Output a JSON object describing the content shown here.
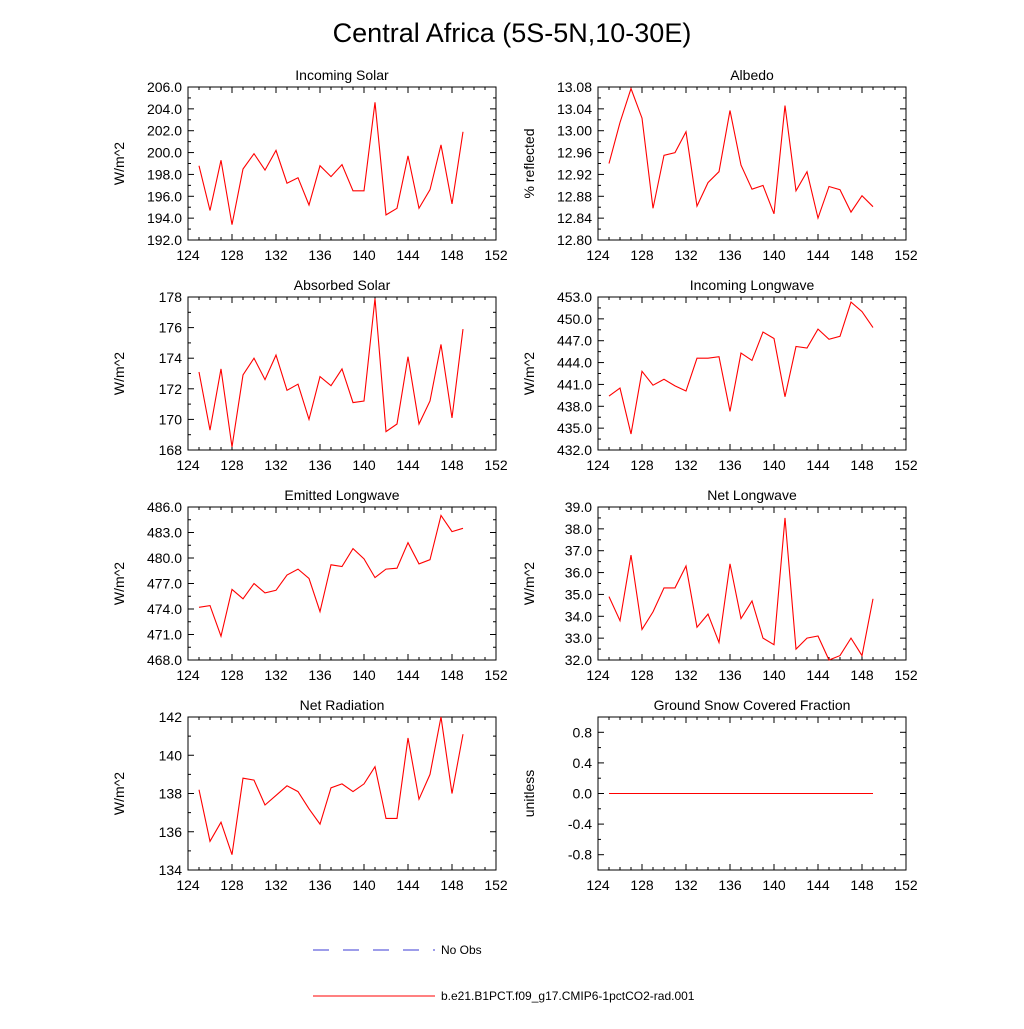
{
  "figure": {
    "title": "Central Africa (5S-5N,10-30E)"
  },
  "legend": {
    "entries": [
      {
        "label": "No Obs",
        "color": "#3b3bd6",
        "dash": true
      },
      {
        "label": "b.e21.B1PCT.f09_g17.CMIP6-1pctCO2-rad.001",
        "color": "#ff0000",
        "dash": false
      }
    ]
  },
  "chart_data": [
    {
      "type": "line",
      "title": "Incoming Solar",
      "ylabel": "W/m^2",
      "xlim": [
        124,
        152
      ],
      "ylim": [
        192,
        206
      ],
      "xticks": [
        "124",
        "128",
        "132",
        "136",
        "140",
        "144",
        "148",
        "152"
      ],
      "yticks": [
        "192.0",
        "194.0",
        "196.0",
        "198.0",
        "200.0",
        "202.0",
        "204.0",
        "206.0"
      ],
      "series": [
        {
          "color": "#ff0000",
          "x": [
            125,
            126,
            127,
            128,
            129,
            130,
            131,
            132,
            133,
            134,
            135,
            136,
            137,
            138,
            139,
            140,
            141,
            142,
            143,
            144,
            145,
            146,
            147,
            148,
            149
          ],
          "y": [
            198.8,
            194.7,
            199.3,
            193.4,
            198.5,
            199.9,
            198.4,
            200.2,
            197.2,
            197.7,
            195.2,
            198.8,
            197.8,
            198.9,
            196.5,
            196.5,
            204.6,
            194.3,
            194.9,
            199.7,
            194.9,
            196.6,
            200.7,
            195.3,
            201.9
          ]
        }
      ]
    },
    {
      "type": "line",
      "title": "Albedo",
      "ylabel": "% reflected",
      "xlim": [
        124,
        152
      ],
      "ylim": [
        12.8,
        13.08
      ],
      "xticks": [
        "124",
        "128",
        "132",
        "136",
        "140",
        "144",
        "148",
        "152"
      ],
      "yticks": [
        "12.80",
        "12.84",
        "12.88",
        "12.92",
        "12.96",
        "13.00",
        "13.04",
        "13.08"
      ],
      "series": [
        {
          "color": "#ff0000",
          "x": [
            125,
            126,
            127,
            128,
            129,
            130,
            131,
            132,
            133,
            134,
            135,
            136,
            137,
            138,
            139,
            140,
            141,
            142,
            143,
            144,
            145,
            146,
            147,
            148,
            149
          ],
          "y": [
            12.94,
            13.015,
            13.077,
            13.023,
            12.858,
            12.955,
            12.96,
            12.998,
            12.862,
            12.905,
            12.925,
            13.037,
            12.937,
            12.893,
            12.9,
            12.848,
            13.046,
            12.89,
            12.925,
            12.84,
            12.898,
            12.892,
            12.851,
            12.881,
            12.861
          ]
        }
      ]
    },
    {
      "type": "line",
      "title": "Absorbed Solar",
      "ylabel": "W/m^2",
      "xlim": [
        124,
        152
      ],
      "ylim": [
        168,
        178
      ],
      "xticks": [
        "124",
        "128",
        "132",
        "136",
        "140",
        "144",
        "148",
        "152"
      ],
      "yticks": [
        "168",
        "170",
        "172",
        "174",
        "176",
        "178"
      ],
      "series": [
        {
          "color": "#ff0000",
          "x": [
            125,
            126,
            127,
            128,
            129,
            130,
            131,
            132,
            133,
            134,
            135,
            136,
            137,
            138,
            139,
            140,
            141,
            142,
            143,
            144,
            145,
            146,
            147,
            148,
            149
          ],
          "y": [
            173.1,
            169.3,
            173.3,
            168.2,
            172.9,
            174.0,
            172.6,
            174.2,
            171.9,
            172.3,
            170.0,
            172.8,
            172.2,
            173.3,
            171.1,
            171.2,
            177.9,
            169.2,
            169.7,
            174.1,
            169.7,
            171.2,
            174.9,
            170.1,
            175.9
          ]
        }
      ]
    },
    {
      "type": "line",
      "title": "Incoming Longwave",
      "ylabel": "W/m^2",
      "xlim": [
        124,
        152
      ],
      "ylim": [
        432,
        453
      ],
      "xticks": [
        "124",
        "128",
        "132",
        "136",
        "140",
        "144",
        "148",
        "152"
      ],
      "yticks": [
        "432.0",
        "435.0",
        "438.0",
        "441.0",
        "444.0",
        "447.0",
        "450.0",
        "453.0"
      ],
      "series": [
        {
          "color": "#ff0000",
          "x": [
            125,
            126,
            127,
            128,
            129,
            130,
            131,
            132,
            133,
            134,
            135,
            136,
            137,
            138,
            139,
            140,
            141,
            142,
            143,
            144,
            145,
            146,
            147,
            148,
            149
          ],
          "y": [
            439.4,
            440.5,
            434.2,
            442.8,
            440.9,
            441.7,
            440.8,
            440.1,
            444.6,
            444.6,
            444.8,
            437.3,
            445.3,
            444.3,
            448.2,
            447.3,
            439.3,
            446.2,
            446.0,
            448.6,
            447.2,
            447.6,
            452.3,
            451.0,
            448.8
          ]
        }
      ]
    },
    {
      "type": "line",
      "title": "Emitted Longwave",
      "ylabel": "W/m^2",
      "xlim": [
        124,
        152
      ],
      "ylim": [
        468,
        486
      ],
      "xticks": [
        "124",
        "128",
        "132",
        "136",
        "140",
        "144",
        "148",
        "152"
      ],
      "yticks": [
        "468.0",
        "471.0",
        "474.0",
        "477.0",
        "480.0",
        "483.0",
        "486.0"
      ],
      "series": [
        {
          "color": "#ff0000",
          "x": [
            125,
            126,
            127,
            128,
            129,
            130,
            131,
            132,
            133,
            134,
            135,
            136,
            137,
            138,
            139,
            140,
            141,
            142,
            143,
            144,
            145,
            146,
            147,
            148,
            149
          ],
          "y": [
            474.2,
            474.4,
            470.8,
            476.3,
            475.2,
            477.0,
            475.9,
            476.2,
            478.0,
            478.7,
            477.6,
            473.7,
            479.2,
            479.0,
            481.1,
            479.9,
            477.7,
            478.7,
            478.8,
            481.8,
            479.3,
            479.8,
            485.0,
            483.1,
            483.5
          ]
        }
      ]
    },
    {
      "type": "line",
      "title": "Net Longwave",
      "ylabel": "W/m^2",
      "xlim": [
        124,
        152
      ],
      "ylim": [
        32,
        39
      ],
      "xticks": [
        "124",
        "128",
        "132",
        "136",
        "140",
        "144",
        "148",
        "152"
      ],
      "yticks": [
        "32.0",
        "33.0",
        "34.0",
        "35.0",
        "36.0",
        "37.0",
        "38.0",
        "39.0"
      ],
      "series": [
        {
          "color": "#ff0000",
          "x": [
            125,
            126,
            127,
            128,
            129,
            130,
            131,
            132,
            133,
            134,
            135,
            136,
            137,
            138,
            139,
            140,
            141,
            142,
            143,
            144,
            145,
            146,
            147,
            148,
            149
          ],
          "y": [
            34.9,
            33.8,
            36.8,
            33.4,
            34.2,
            35.3,
            35.3,
            36.3,
            33.5,
            34.1,
            32.8,
            36.4,
            33.9,
            34.7,
            33.0,
            32.7,
            38.5,
            32.5,
            33.0,
            33.1,
            32.0,
            32.2,
            33.0,
            32.2,
            34.8
          ]
        }
      ]
    },
    {
      "type": "line",
      "title": "Net Radiation",
      "ylabel": "W/m^2",
      "xlim": [
        124,
        152
      ],
      "ylim": [
        134,
        142
      ],
      "xticks": [
        "124",
        "128",
        "132",
        "136",
        "140",
        "144",
        "148",
        "152"
      ],
      "yticks": [
        "134",
        "136",
        "138",
        "140",
        "142"
      ],
      "series": [
        {
          "color": "#ff0000",
          "x": [
            125,
            126,
            127,
            128,
            129,
            130,
            131,
            132,
            133,
            134,
            135,
            136,
            137,
            138,
            139,
            140,
            141,
            142,
            143,
            144,
            145,
            146,
            147,
            148,
            149
          ],
          "y": [
            138.2,
            135.5,
            136.5,
            134.8,
            138.8,
            138.7,
            137.4,
            137.9,
            138.4,
            138.1,
            137.2,
            136.4,
            138.3,
            138.5,
            138.1,
            138.5,
            139.4,
            136.7,
            136.7,
            140.9,
            137.7,
            139.0,
            142.0,
            138.0,
            141.1
          ]
        }
      ]
    },
    {
      "type": "line",
      "title": "Ground Snow Covered Fraction",
      "ylabel": "unitless",
      "xlim": [
        124,
        152
      ],
      "ylim": [
        -1.0,
        1.0
      ],
      "xticks": [
        "124",
        "128",
        "132",
        "136",
        "140",
        "144",
        "148",
        "152"
      ],
      "yticks": [
        "-0.8",
        "-0.4",
        "0.0",
        "0.4",
        "0.8"
      ],
      "yticks_values": [
        -0.8,
        -0.4,
        0.0,
        0.4,
        0.8
      ],
      "series": [
        {
          "color": "#ff0000",
          "x": [
            125,
            126,
            127,
            128,
            129,
            130,
            131,
            132,
            133,
            134,
            135,
            136,
            137,
            138,
            139,
            140,
            141,
            142,
            143,
            144,
            145,
            146,
            147,
            148,
            149
          ],
          "y": [
            0,
            0,
            0,
            0,
            0,
            0,
            0,
            0,
            0,
            0,
            0,
            0,
            0,
            0,
            0,
            0,
            0,
            0,
            0,
            0,
            0,
            0,
            0,
            0,
            0
          ]
        }
      ]
    }
  ]
}
